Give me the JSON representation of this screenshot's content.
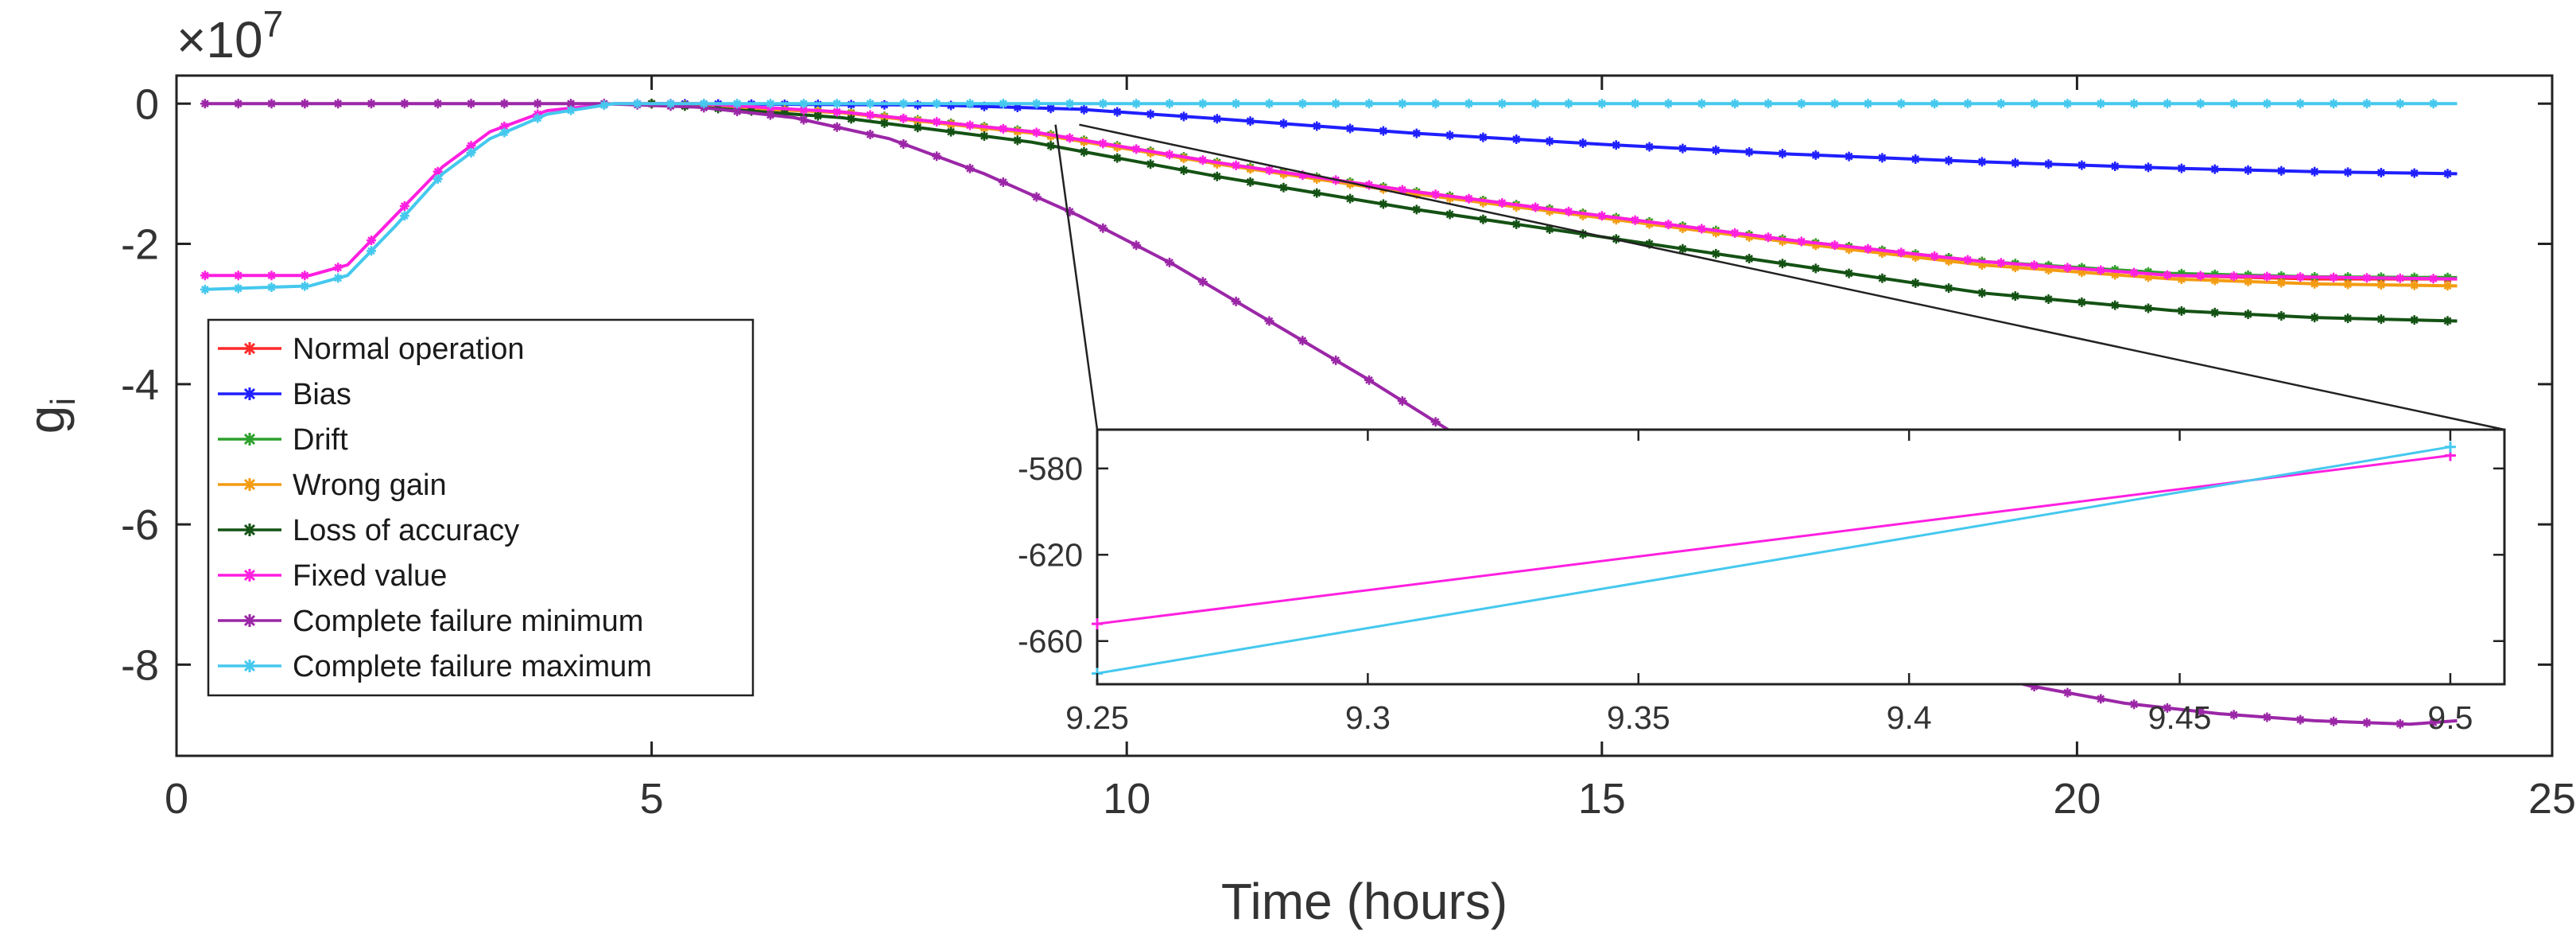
{
  "chart_data": {
    "type": "line",
    "title": "",
    "xlabel": "Time (hours)",
    "ylabel": "g",
    "ylabel_subscript": "i",
    "y_exponent_label": "×10",
    "y_exponent_power": "7",
    "xlim": [
      0,
      25
    ],
    "ylim": [
      -9.3,
      0.4
    ],
    "xticks": [
      0,
      5,
      10,
      15,
      20,
      25
    ],
    "xtick_labels": [
      "0",
      "5",
      "10",
      "15",
      "20",
      "25"
    ],
    "yticks": [
      0,
      -2,
      -4,
      -6,
      -8
    ],
    "ytick_labels": [
      "0",
      "-2",
      "-4",
      "-6",
      "-8"
    ],
    "grid": false,
    "legend_placement": "lower-left",
    "series": [
      {
        "name": "Normal operation",
        "color": "#ff2a2a",
        "points": [
          [
            5,
            0
          ],
          [
            7,
            -0.12
          ],
          [
            9,
            -0.4
          ],
          [
            11,
            -0.85
          ],
          [
            13,
            -1.25
          ],
          [
            15,
            -1.6
          ],
          [
            17,
            -1.95
          ],
          [
            19,
            -2.25
          ],
          [
            21,
            -2.45
          ],
          [
            22.5,
            -2.5
          ],
          [
            24,
            -2.5
          ]
        ]
      },
      {
        "name": "Bias",
        "color": "#1f1fff",
        "points": [
          [
            5,
            0
          ],
          [
            8,
            -0.02
          ],
          [
            9.5,
            -0.08
          ],
          [
            11,
            -0.22
          ],
          [
            13,
            -0.42
          ],
          [
            15,
            -0.58
          ],
          [
            17,
            -0.72
          ],
          [
            19,
            -0.83
          ],
          [
            21,
            -0.92
          ],
          [
            22.5,
            -0.97
          ],
          [
            24,
            -1.0
          ]
        ]
      },
      {
        "name": "Drift",
        "color": "#2ca02c",
        "points": [
          [
            5,
            0
          ],
          [
            7,
            -0.12
          ],
          [
            9,
            -0.4
          ],
          [
            11,
            -0.85
          ],
          [
            13,
            -1.25
          ],
          [
            15,
            -1.6
          ],
          [
            17,
            -1.95
          ],
          [
            19,
            -2.25
          ],
          [
            21,
            -2.42
          ],
          [
            22.5,
            -2.47
          ],
          [
            24,
            -2.48
          ]
        ]
      },
      {
        "name": "Wrong gain",
        "color": "#f39c12",
        "points": [
          [
            5,
            0
          ],
          [
            7,
            -0.13
          ],
          [
            9,
            -0.42
          ],
          [
            11,
            -0.87
          ],
          [
            13,
            -1.28
          ],
          [
            15,
            -1.63
          ],
          [
            17,
            -1.98
          ],
          [
            19,
            -2.3
          ],
          [
            21,
            -2.5
          ],
          [
            22.5,
            -2.57
          ],
          [
            24,
            -2.6
          ]
        ]
      },
      {
        "name": "Loss of accuracy",
        "color": "#145214",
        "points": [
          [
            5,
            0
          ],
          [
            7,
            -0.2
          ],
          [
            9,
            -0.55
          ],
          [
            11,
            -1.05
          ],
          [
            13,
            -1.5
          ],
          [
            15,
            -1.9
          ],
          [
            17,
            -2.3
          ],
          [
            19,
            -2.7
          ],
          [
            21,
            -2.95
          ],
          [
            22.5,
            -3.05
          ],
          [
            24,
            -3.1
          ]
        ]
      },
      {
        "name": "Fixed value",
        "color": "#ff1fe0",
        "points": [
          [
            0.3,
            -2.45
          ],
          [
            1.4,
            -2.45
          ],
          [
            1.8,
            -2.3
          ],
          [
            2.3,
            -1.6
          ],
          [
            2.8,
            -0.9
          ],
          [
            3.3,
            -0.4
          ],
          [
            3.9,
            -0.1
          ],
          [
            4.6,
            0
          ],
          [
            5.5,
            0
          ],
          [
            7,
            -0.12
          ],
          [
            9,
            -0.4
          ],
          [
            11,
            -0.85
          ],
          [
            13,
            -1.25
          ],
          [
            15,
            -1.6
          ],
          [
            17,
            -1.95
          ],
          [
            19,
            -2.25
          ],
          [
            21,
            -2.45
          ],
          [
            24,
            -2.5
          ]
        ]
      },
      {
        "name": "Complete failure minimum",
        "color": "#9b27a7",
        "points": [
          [
            0.3,
            0
          ],
          [
            3,
            0
          ],
          [
            4.5,
            0
          ],
          [
            5.5,
            -0.05
          ],
          [
            6.5,
            -0.2
          ],
          [
            7.5,
            -0.5
          ],
          [
            8.5,
            -1.0
          ],
          [
            9.5,
            -1.6
          ],
          [
            10.5,
            -2.3
          ],
          [
            11.5,
            -3.1
          ],
          [
            12.5,
            -3.9
          ],
          [
            13.5,
            -4.75
          ],
          [
            14.5,
            -5.55
          ],
          [
            15.5,
            -6.3
          ],
          [
            16.5,
            -6.95
          ],
          [
            17.5,
            -7.5
          ],
          [
            18.5,
            -7.95
          ],
          [
            19.5,
            -8.3
          ],
          [
            20.5,
            -8.55
          ],
          [
            21.5,
            -8.7
          ],
          [
            22.5,
            -8.8
          ],
          [
            23.5,
            -8.85
          ],
          [
            24,
            -8.8
          ]
        ]
      },
      {
        "name": "Complete failure maximum",
        "color": "#45c8ee",
        "points": [
          [
            0.3,
            -2.65
          ],
          [
            1.4,
            -2.6
          ],
          [
            1.8,
            -2.45
          ],
          [
            2.3,
            -1.75
          ],
          [
            2.8,
            -1.0
          ],
          [
            3.3,
            -0.5
          ],
          [
            3.9,
            -0.15
          ],
          [
            4.6,
            0
          ],
          [
            6,
            0
          ],
          [
            10,
            0
          ],
          [
            15,
            0
          ],
          [
            20,
            0
          ],
          [
            24,
            0
          ]
        ]
      }
    ],
    "inset": {
      "xlim": [
        9.25,
        9.51
      ],
      "ylim": [
        -680,
        -562
      ],
      "xticks": [
        9.25,
        9.3,
        9.35,
        9.4,
        9.45,
        9.5
      ],
      "xtick_labels": [
        "9.25",
        "9.3",
        "9.35",
        "9.4",
        "9.45",
        "9.5"
      ],
      "yticks": [
        -580,
        -620,
        -660
      ],
      "ytick_labels": [
        "-580",
        "-620",
        "-660"
      ],
      "zoom_source_x": [
        9.25,
        9.5
      ],
      "zoom_source_y": [
        -0.3,
        -0.3
      ],
      "series": [
        {
          "name": "Fixed value",
          "color": "#ff1fe0",
          "points": [
            [
              9.25,
              -652
            ],
            [
              9.5,
              -574
            ]
          ]
        },
        {
          "name": "Complete failure maximum",
          "color": "#45c8ee",
          "points": [
            [
              9.25,
              -675
            ],
            [
              9.5,
              -570
            ]
          ]
        }
      ]
    }
  }
}
